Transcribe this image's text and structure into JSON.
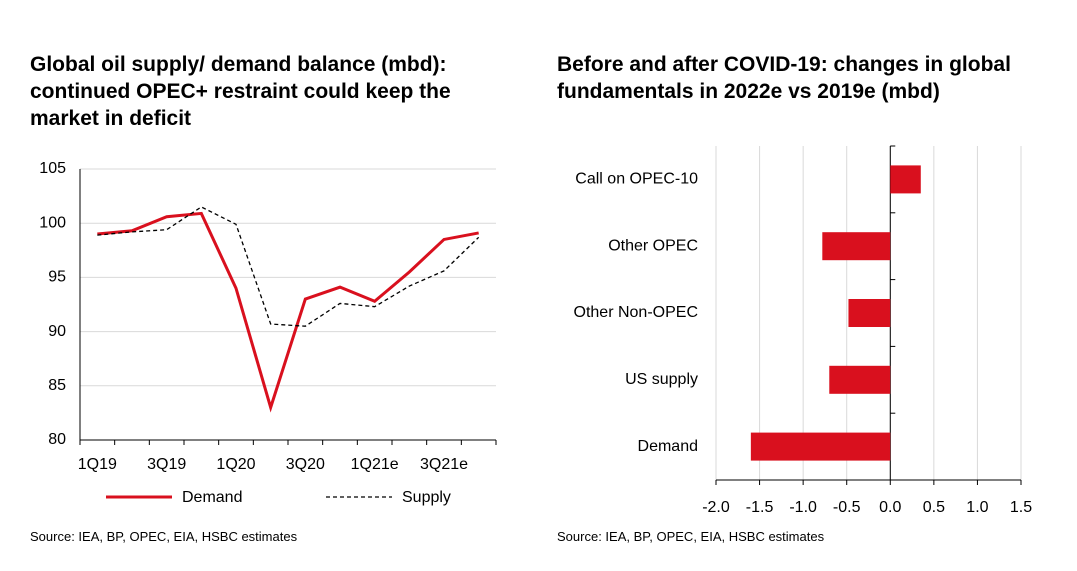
{
  "chart_data": [
    {
      "type": "line",
      "title": "Global oil supply/ demand balance (mbd): continued OPEC+ restraint could keep the market in deficit",
      "categories": [
        "1Q19",
        null,
        "3Q19",
        null,
        "1Q20",
        null,
        "3Q20",
        null,
        "1Q21e",
        null,
        "3Q21e",
        null
      ],
      "series": [
        {
          "name": "Demand",
          "color": "#d9101e",
          "style": "solid",
          "values": [
            99.0,
            99.3,
            100.6,
            100.9,
            94.0,
            83.0,
            93.0,
            94.1,
            92.8,
            95.5,
            98.5,
            99.1
          ]
        },
        {
          "name": "Supply",
          "color": "#000000",
          "style": "dashed",
          "values": [
            98.9,
            99.2,
            99.4,
            101.5,
            99.9,
            90.7,
            90.5,
            92.6,
            92.3,
            94.2,
            95.6,
            98.7
          ]
        }
      ],
      "ylim": [
        80,
        105
      ],
      "yticks": [
        80,
        85,
        90,
        95,
        100,
        105
      ],
      "grid": true,
      "legend": "bottom",
      "source": "Source: IEA, BP, OPEC, EIA, HSBC estimates"
    },
    {
      "type": "barh",
      "title": "Before and after COVID-19: changes in global fundamentals in 2022e vs 2019e (mbd)",
      "categories": [
        "Call on OPEC-10",
        "Other OPEC",
        "Other Non-OPEC",
        "US supply",
        "Demand"
      ],
      "values": [
        0.35,
        -0.78,
        -0.48,
        -0.7,
        -1.6
      ],
      "color": "#d9101e",
      "xlim": [
        -2.0,
        1.5
      ],
      "xticks": [
        {
          "value": -2.0,
          "label": "-2.0"
        },
        -1.5,
        {
          "value": -1.0,
          "label": "-1.0"
        },
        -0.5,
        {
          "value": 0.0,
          "label": "0.0"
        },
        0.5,
        {
          "value": 1.0,
          "label": "1.0"
        },
        1.5
      ],
      "grid": true,
      "source": "Source: IEA, BP, OPEC, EIA, HSBC estimates"
    }
  ]
}
